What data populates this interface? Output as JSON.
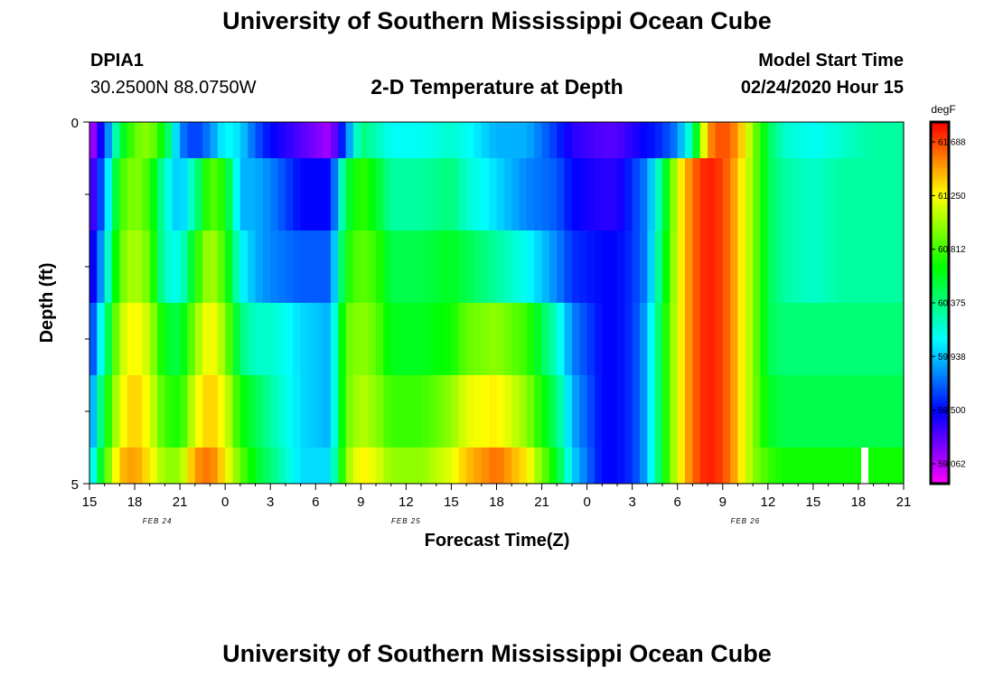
{
  "header": {
    "title": "University of Southern Mississippi Ocean Cube",
    "station_id": "DPIA1",
    "station_coords": "30.2500N 88.0750W",
    "model_start_label": "Model Start Time",
    "model_start_value": "02/24/2020 Hour 15"
  },
  "footer": {
    "title": "University of Southern Mississippi Ocean Cube"
  },
  "chart_data": {
    "type": "heatmap",
    "title": "2-D Temperature at Depth",
    "xlabel": "Forecast Time(Z)",
    "ylabel": "Depth (ft)",
    "x_range_hours": [
      0,
      54
    ],
    "x_start": "02/24/2020 15Z",
    "x_tick_labels": [
      "15",
      "18",
      "21",
      "0",
      "3",
      "6",
      "9",
      "12",
      "15",
      "18",
      "21",
      "0",
      "3",
      "6",
      "9",
      "12",
      "15",
      "18",
      "21"
    ],
    "date_labels": [
      {
        "text": "FEB 24",
        "hour": 4.5
      },
      {
        "text": "FEB 25",
        "hour": 21
      },
      {
        "text": "FEB 26",
        "hour": 43.5
      }
    ],
    "y_range": [
      0,
      5
    ],
    "y_tick_labels": [
      "0",
      "5"
    ],
    "y_minor_ticks": [
      1,
      2,
      3,
      4
    ],
    "depth_rows": [
      0,
      1,
      2,
      3,
      4,
      5
    ],
    "colorbar": {
      "unit": "degF",
      "min": 58.9,
      "max": 61.85,
      "tick_labels": [
        "61.688",
        "61.250",
        "60.812",
        "60.375",
        "59.938",
        "59.500",
        "59.062"
      ],
      "tick_values": [
        61.688,
        61.25,
        60.812,
        60.375,
        59.938,
        59.5,
        59.062
      ]
    },
    "profiles": [
      {
        "depth": 0,
        "keys": [
          [
            0,
            59.0
          ],
          [
            1,
            59.6
          ],
          [
            2,
            60.5
          ],
          [
            3,
            60.9
          ],
          [
            4,
            61.0
          ],
          [
            5,
            60.6
          ],
          [
            6,
            59.8
          ],
          [
            7,
            59.6
          ],
          [
            8,
            59.8
          ],
          [
            9,
            60.1
          ],
          [
            10,
            60.0
          ],
          [
            11,
            59.7
          ],
          [
            12,
            59.5
          ],
          [
            14,
            59.3
          ],
          [
            16,
            59.1
          ],
          [
            17,
            59.7
          ],
          [
            18,
            60.4
          ],
          [
            20,
            60.1
          ],
          [
            22,
            60.1
          ],
          [
            24,
            60.2
          ],
          [
            25,
            60.1
          ],
          [
            27,
            59.9
          ],
          [
            29,
            59.9
          ],
          [
            31,
            59.6
          ],
          [
            32,
            59.4
          ],
          [
            34,
            59.3
          ],
          [
            35,
            59.3
          ],
          [
            36,
            59.4
          ],
          [
            37,
            59.5
          ],
          [
            38,
            59.6
          ],
          [
            39,
            59.8
          ],
          [
            40,
            60.3
          ],
          [
            41,
            61.5
          ],
          [
            42,
            61.7
          ],
          [
            43,
            61.5
          ],
          [
            44,
            61.0
          ],
          [
            45,
            60.5
          ],
          [
            46,
            60.2
          ],
          [
            48,
            60.1
          ],
          [
            50,
            60.2
          ],
          [
            52,
            60.3
          ],
          [
            54,
            60.3
          ]
        ]
      },
      {
        "depth": 1,
        "keys": [
          [
            0,
            59.2
          ],
          [
            1,
            59.8
          ],
          [
            2,
            60.8
          ],
          [
            3,
            61.0
          ],
          [
            4,
            60.8
          ],
          [
            5,
            60.2
          ],
          [
            6,
            59.9
          ],
          [
            7,
            60.3
          ],
          [
            8,
            60.9
          ],
          [
            9,
            60.7
          ],
          [
            10,
            59.9
          ],
          [
            11,
            59.9
          ],
          [
            12,
            59.8
          ],
          [
            14,
            59.5
          ],
          [
            16,
            59.5
          ],
          [
            17,
            60.5
          ],
          [
            18,
            60.8
          ],
          [
            19,
            60.6
          ],
          [
            20,
            60.3
          ],
          [
            22,
            60.3
          ],
          [
            24,
            60.4
          ],
          [
            25,
            60.2
          ],
          [
            27,
            60.0
          ],
          [
            29,
            59.8
          ],
          [
            31,
            59.7
          ],
          [
            32,
            59.5
          ],
          [
            34,
            59.4
          ],
          [
            35,
            59.4
          ],
          [
            36,
            59.6
          ],
          [
            37,
            59.8
          ],
          [
            38,
            60.4
          ],
          [
            39,
            61.2
          ],
          [
            40,
            61.6
          ],
          [
            41,
            61.8
          ],
          [
            42,
            61.7
          ],
          [
            43,
            61.4
          ],
          [
            44,
            61.0
          ],
          [
            45,
            60.5
          ],
          [
            46,
            60.3
          ],
          [
            48,
            60.2
          ],
          [
            50,
            60.3
          ],
          [
            52,
            60.3
          ],
          [
            54,
            60.3
          ]
        ]
      },
      {
        "depth": 2,
        "keys": [
          [
            0,
            59.3
          ],
          [
            1,
            60.0
          ],
          [
            2,
            60.9
          ],
          [
            3,
            61.1
          ],
          [
            4,
            60.9
          ],
          [
            5,
            60.2
          ],
          [
            6,
            60.1
          ],
          [
            7,
            60.7
          ],
          [
            8,
            61.1
          ],
          [
            9,
            60.8
          ],
          [
            10,
            60.1
          ],
          [
            11,
            59.9
          ],
          [
            12,
            59.8
          ],
          [
            14,
            59.7
          ],
          [
            16,
            59.7
          ],
          [
            17,
            60.7
          ],
          [
            18,
            60.9
          ],
          [
            19,
            60.8
          ],
          [
            20,
            60.5
          ],
          [
            22,
            60.5
          ],
          [
            24,
            60.6
          ],
          [
            25,
            60.5
          ],
          [
            27,
            60.3
          ],
          [
            29,
            60.1
          ],
          [
            31,
            59.8
          ],
          [
            32,
            59.6
          ],
          [
            34,
            59.5
          ],
          [
            35,
            59.5
          ],
          [
            36,
            59.6
          ],
          [
            37,
            59.8
          ],
          [
            38,
            60.5
          ],
          [
            39,
            61.2
          ],
          [
            40,
            61.6
          ],
          [
            41,
            61.8
          ],
          [
            42,
            61.7
          ],
          [
            43,
            61.4
          ],
          [
            44,
            61.0
          ],
          [
            45,
            60.5
          ],
          [
            46,
            60.3
          ],
          [
            48,
            60.2
          ],
          [
            50,
            60.3
          ],
          [
            52,
            60.3
          ],
          [
            54,
            60.3
          ]
        ]
      },
      {
        "depth": 3,
        "keys": [
          [
            0,
            59.5
          ],
          [
            1,
            60.3
          ],
          [
            2,
            61.1
          ],
          [
            3,
            61.3
          ],
          [
            4,
            61.1
          ],
          [
            5,
            60.6
          ],
          [
            6,
            60.5
          ],
          [
            7,
            61.0
          ],
          [
            8,
            61.3
          ],
          [
            9,
            61.0
          ],
          [
            10,
            60.4
          ],
          [
            11,
            60.2
          ],
          [
            12,
            60.2
          ],
          [
            14,
            60.0
          ],
          [
            16,
            59.9
          ],
          [
            17,
            60.9
          ],
          [
            18,
            61.0
          ],
          [
            19,
            60.9
          ],
          [
            20,
            60.6
          ],
          [
            22,
            60.6
          ],
          [
            24,
            60.7
          ],
          [
            25,
            60.9
          ],
          [
            27,
            61.0
          ],
          [
            29,
            60.8
          ],
          [
            31,
            60.2
          ],
          [
            32,
            59.8
          ],
          [
            34,
            59.5
          ],
          [
            35,
            59.5
          ],
          [
            36,
            59.6
          ],
          [
            37,
            59.9
          ],
          [
            38,
            60.6
          ],
          [
            39,
            61.2
          ],
          [
            40,
            61.6
          ],
          [
            41,
            61.8
          ],
          [
            42,
            61.7
          ],
          [
            43,
            61.4
          ],
          [
            44,
            61.0
          ],
          [
            45,
            60.5
          ],
          [
            46,
            60.4
          ],
          [
            48,
            60.4
          ],
          [
            50,
            60.4
          ],
          [
            52,
            60.4
          ],
          [
            54,
            60.4
          ]
        ]
      },
      {
        "depth": 4,
        "keys": [
          [
            0,
            59.7
          ],
          [
            1,
            60.6
          ],
          [
            2,
            61.2
          ],
          [
            3,
            61.4
          ],
          [
            4,
            61.2
          ],
          [
            5,
            60.8
          ],
          [
            6,
            60.7
          ],
          [
            7,
            61.2
          ],
          [
            8,
            61.4
          ],
          [
            9,
            61.2
          ],
          [
            10,
            60.7
          ],
          [
            11,
            60.5
          ],
          [
            12,
            60.3
          ],
          [
            14,
            60.0
          ],
          [
            16,
            59.9
          ],
          [
            17,
            60.9
          ],
          [
            18,
            61.1
          ],
          [
            19,
            61.0
          ],
          [
            20,
            60.8
          ],
          [
            22,
            60.8
          ],
          [
            24,
            61.0
          ],
          [
            25,
            61.2
          ],
          [
            27,
            61.3
          ],
          [
            29,
            61.0
          ],
          [
            31,
            60.4
          ],
          [
            32,
            59.9
          ],
          [
            34,
            59.5
          ],
          [
            35,
            59.5
          ],
          [
            36,
            59.6
          ],
          [
            37,
            59.9
          ],
          [
            38,
            60.6
          ],
          [
            39,
            61.2
          ],
          [
            40,
            61.6
          ],
          [
            41,
            61.8
          ],
          [
            42,
            61.7
          ],
          [
            43,
            61.4
          ],
          [
            44,
            61.0
          ],
          [
            45,
            60.6
          ],
          [
            46,
            60.5
          ],
          [
            48,
            60.5
          ],
          [
            50,
            60.5
          ],
          [
            52,
            60.5
          ],
          [
            54,
            60.5
          ]
        ]
      },
      {
        "depth": 5,
        "keys": [
          [
            0,
            59.9
          ],
          [
            1,
            60.8
          ],
          [
            2,
            61.4
          ],
          [
            3,
            61.5
          ],
          [
            4,
            61.3
          ],
          [
            5,
            61.0
          ],
          [
            6,
            61.0
          ],
          [
            7,
            61.5
          ],
          [
            8,
            61.6
          ],
          [
            9,
            61.3
          ],
          [
            10,
            60.9
          ],
          [
            11,
            60.6
          ],
          [
            12,
            60.4
          ],
          [
            14,
            60.0
          ],
          [
            16,
            60.0
          ],
          [
            17,
            61.0
          ],
          [
            18,
            61.3
          ],
          [
            19,
            61.2
          ],
          [
            20,
            61.0
          ],
          [
            22,
            61.0
          ],
          [
            24,
            61.2
          ],
          [
            25,
            61.4
          ],
          [
            27,
            61.6
          ],
          [
            29,
            61.3
          ],
          [
            31,
            60.6
          ],
          [
            32,
            60.0
          ],
          [
            34,
            59.5
          ],
          [
            35,
            59.5
          ],
          [
            36,
            59.6
          ],
          [
            37,
            59.9
          ],
          [
            38,
            60.6
          ],
          [
            39,
            61.2
          ],
          [
            40,
            61.6
          ],
          [
            41,
            61.8
          ],
          [
            42,
            61.7
          ],
          [
            43,
            61.4
          ],
          [
            44,
            61.0
          ],
          [
            45,
            60.8
          ],
          [
            46,
            60.7
          ],
          [
            48,
            60.7
          ],
          [
            50,
            60.7
          ],
          [
            52,
            60.7
          ],
          [
            54,
            60.7
          ]
        ]
      }
    ]
  }
}
